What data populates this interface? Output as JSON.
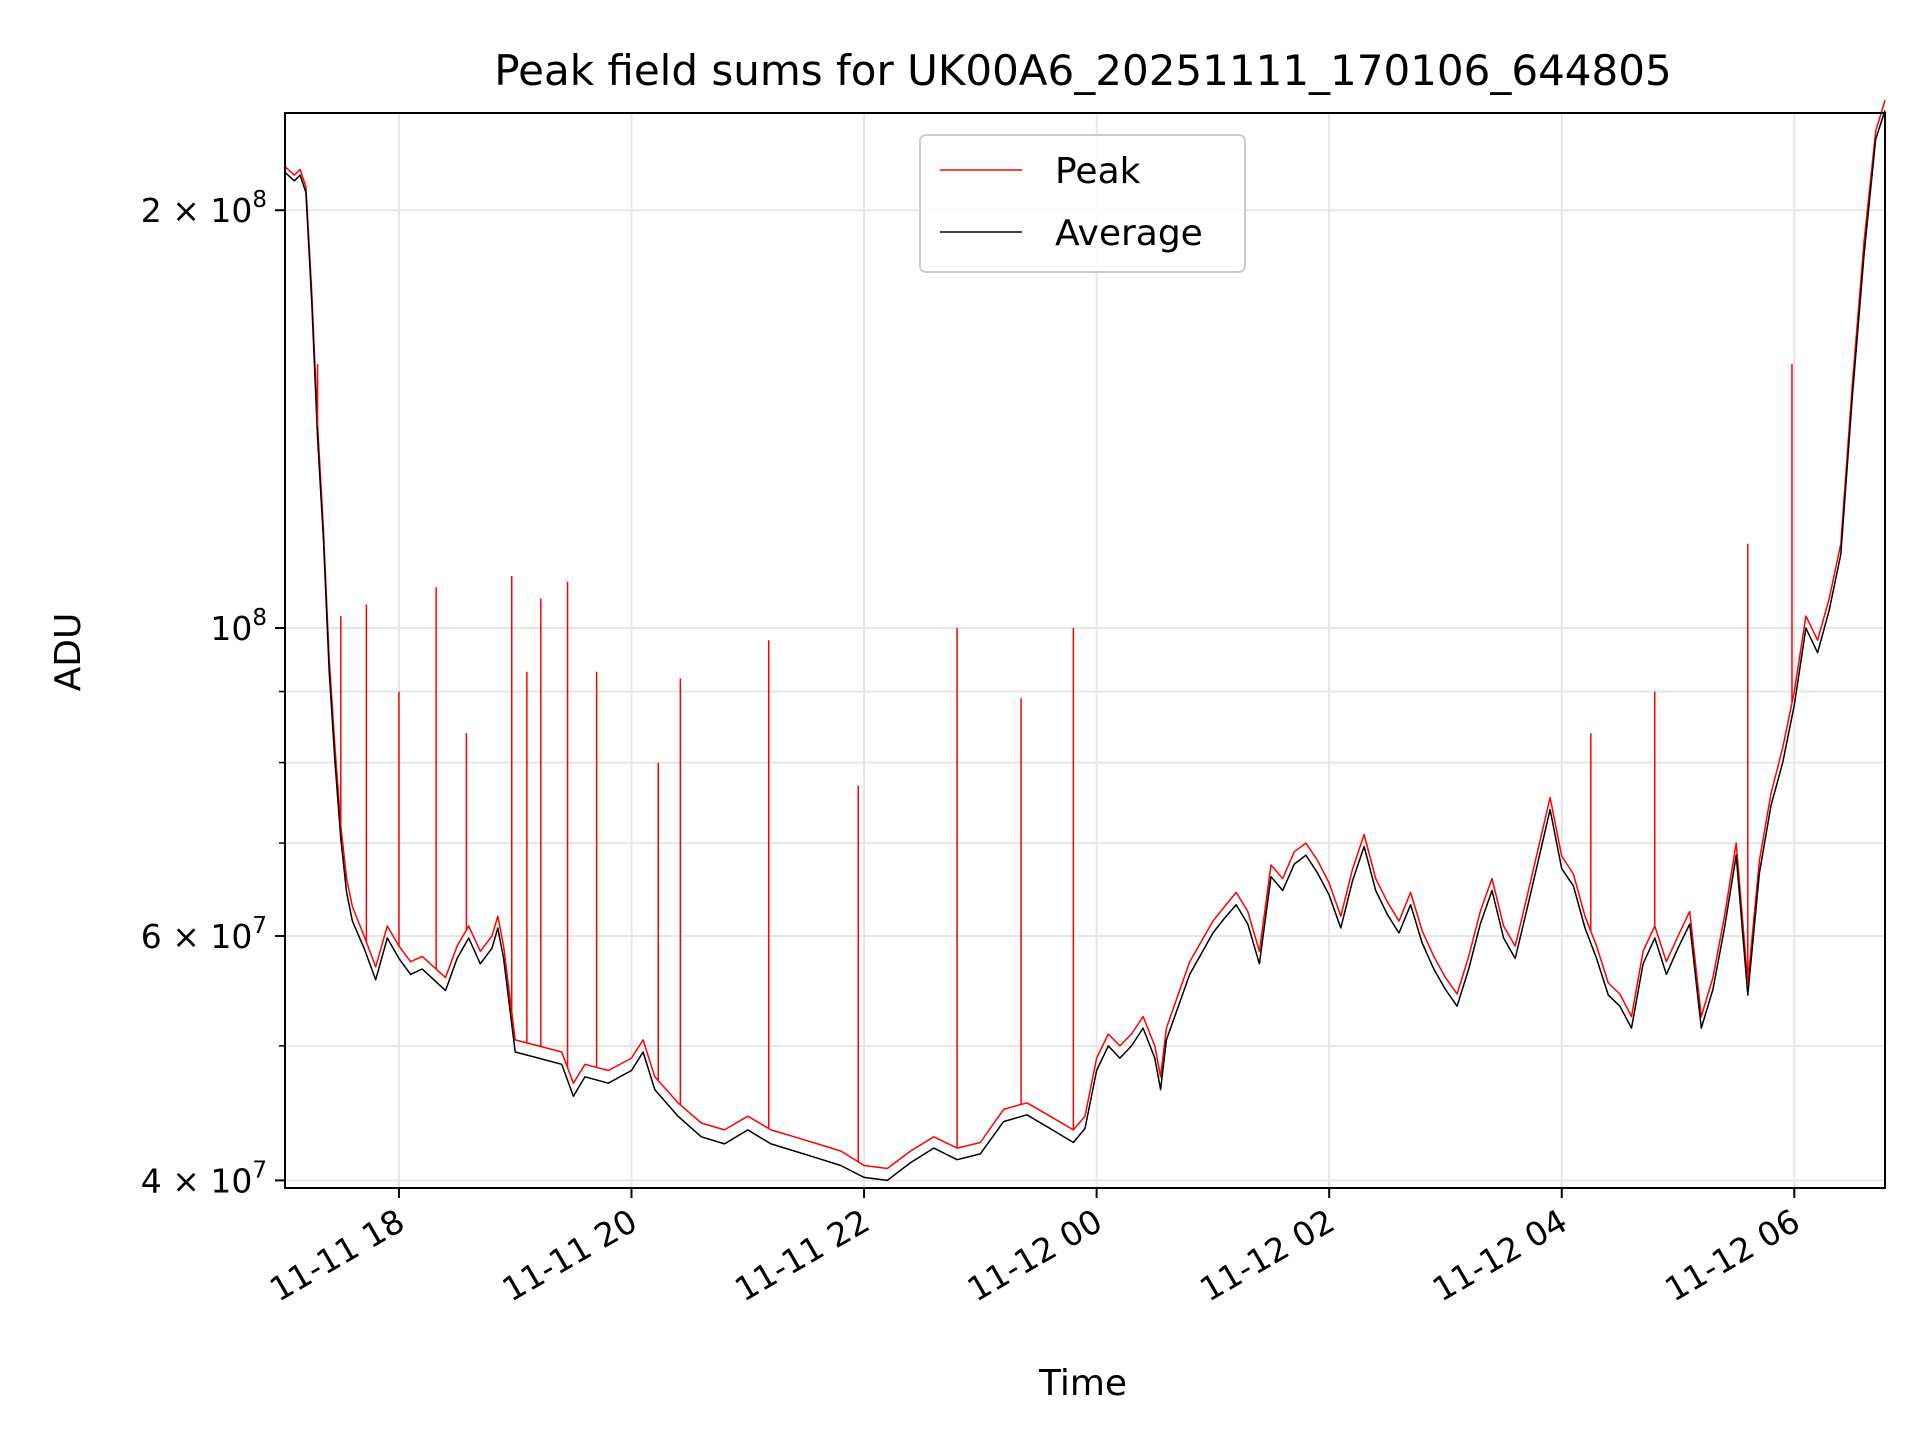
{
  "chart_data": {
    "type": "line",
    "title": "Peak field sums for UK00A6_20251111_170106_644805",
    "xlabel": "Time",
    "ylabel": "ADU",
    "yscale": "log",
    "grid": true,
    "legend_position": "top-center",
    "x_unit": "hours since 2025-11-11 00:00",
    "xlim": [
      17.02,
      30.78
    ],
    "ylim": [
      39500000,
      235000000
    ],
    "x_ticks": [
      {
        "value": 18,
        "label": "11-11 18"
      },
      {
        "value": 20,
        "label": "11-11 20"
      },
      {
        "value": 22,
        "label": "11-11 22"
      },
      {
        "value": 24,
        "label": "11-12 00"
      },
      {
        "value": 26,
        "label": "11-12 02"
      },
      {
        "value": 28,
        "label": "11-12 04"
      },
      {
        "value": 30,
        "label": "11-12 06"
      }
    ],
    "y_ticks": [
      {
        "value": 40000000,
        "mantissa": "4",
        "exponent": "7"
      },
      {
        "value": 60000000,
        "mantissa": "6",
        "exponent": "7"
      },
      {
        "value": 100000000,
        "mantissa": "",
        "exponent": "8"
      },
      {
        "value": 200000000,
        "mantissa": "2",
        "exponent": "8"
      }
    ],
    "y_minor_ticks": [
      50000000,
      70000000,
      80000000,
      90000000
    ],
    "series": [
      {
        "name": "Peak",
        "color": "#ff0000",
        "x": [
          17.02,
          17.1,
          17.15,
          17.2,
          17.25,
          17.3,
          17.35,
          17.4,
          17.45,
          17.5,
          17.55,
          17.6,
          17.7,
          17.8,
          17.9,
          18.0,
          18.1,
          18.2,
          18.3,
          18.4,
          18.5,
          18.6,
          18.7,
          18.8,
          18.85,
          18.9,
          19.0,
          19.2,
          19.4,
          19.5,
          19.6,
          19.8,
          20.0,
          20.1,
          20.2,
          20.4,
          20.6,
          20.8,
          21.0,
          21.2,
          21.4,
          21.6,
          21.8,
          22.0,
          22.2,
          22.4,
          22.6,
          22.8,
          23.0,
          23.2,
          23.4,
          23.6,
          23.8,
          23.9,
          24.0,
          24.1,
          24.2,
          24.3,
          24.4,
          24.5,
          24.55,
          24.6,
          24.8,
          25.0,
          25.1,
          25.2,
          25.3,
          25.4,
          25.5,
          25.6,
          25.7,
          25.8,
          25.9,
          26.0,
          26.1,
          26.2,
          26.3,
          26.4,
          26.5,
          26.6,
          26.7,
          26.8,
          26.9,
          27.0,
          27.1,
          27.2,
          27.3,
          27.4,
          27.5,
          27.6,
          27.7,
          27.8,
          27.9,
          28.0,
          28.1,
          28.2,
          28.3,
          28.4,
          28.5,
          28.6,
          28.7,
          28.8,
          28.9,
          29.0,
          29.1,
          29.2,
          29.3,
          29.4,
          29.5,
          29.6,
          29.7,
          29.8,
          29.9,
          30.0,
          30.1,
          30.2,
          30.3,
          30.4,
          30.5,
          30.6,
          30.7,
          30.78
        ],
        "values": [
          215000000,
          212000000,
          214000000,
          208000000,
          175000000,
          140000000,
          118000000,
          95000000,
          82000000,
          72000000,
          66000000,
          63000000,
          60000000,
          57000000,
          61000000,
          59000000,
          57500000,
          58000000,
          57000000,
          56000000,
          59000000,
          61000000,
          58500000,
          60000000,
          62000000,
          59000000,
          50500000,
          50000000,
          49500000,
          47000000,
          48500000,
          48000000,
          49000000,
          50500000,
          47500000,
          45500000,
          44000000,
          43500000,
          44500000,
          43500000,
          43000000,
          42500000,
          42000000,
          41000000,
          40800000,
          42000000,
          43000000,
          42200000,
          42600000,
          45000000,
          45500000,
          44500000,
          43500000,
          44500000,
          49000000,
          51000000,
          50000000,
          51000000,
          52500000,
          50000000,
          47500000,
          51500000,
          57500000,
          61500000,
          63000000,
          64500000,
          62500000,
          58500000,
          67500000,
          66000000,
          69000000,
          70000000,
          68000000,
          65500000,
          62000000,
          67000000,
          71000000,
          66000000,
          63500000,
          61500000,
          64500000,
          60500000,
          58000000,
          56000000,
          54500000,
          58000000,
          62500000,
          66000000,
          61000000,
          59000000,
          64000000,
          69500000,
          75500000,
          68500000,
          66500000,
          62000000,
          59000000,
          55500000,
          54500000,
          52500000,
          58500000,
          61000000,
          57500000,
          60000000,
          62500000,
          52500000,
          56000000,
          62000000,
          70000000,
          55500000,
          68000000,
          76000000,
          82000000,
          90000000,
          102000000,
          98000000,
          105000000,
          115000000,
          150000000,
          190000000,
          228000000,
          240000000
        ]
      },
      {
        "name": "Average",
        "color": "#000000",
        "x": [
          17.02,
          17.1,
          17.15,
          17.2,
          17.25,
          17.3,
          17.35,
          17.4,
          17.45,
          17.5,
          17.55,
          17.6,
          17.7,
          17.8,
          17.9,
          18.0,
          18.1,
          18.2,
          18.3,
          18.4,
          18.5,
          18.6,
          18.7,
          18.8,
          18.85,
          18.9,
          19.0,
          19.2,
          19.4,
          19.5,
          19.6,
          19.8,
          20.0,
          20.1,
          20.2,
          20.4,
          20.6,
          20.8,
          21.0,
          21.2,
          21.4,
          21.6,
          21.8,
          22.0,
          22.2,
          22.4,
          22.6,
          22.8,
          23.0,
          23.2,
          23.4,
          23.6,
          23.8,
          23.9,
          24.0,
          24.1,
          24.2,
          24.3,
          24.4,
          24.5,
          24.55,
          24.6,
          24.8,
          25.0,
          25.1,
          25.2,
          25.3,
          25.4,
          25.5,
          25.6,
          25.7,
          25.8,
          25.9,
          26.0,
          26.1,
          26.2,
          26.3,
          26.4,
          26.5,
          26.6,
          26.7,
          26.8,
          26.9,
          27.0,
          27.1,
          27.2,
          27.3,
          27.4,
          27.5,
          27.6,
          27.7,
          27.8,
          27.9,
          28.0,
          28.1,
          28.2,
          28.3,
          28.4,
          28.5,
          28.6,
          28.7,
          28.8,
          28.9,
          29.0,
          29.1,
          29.2,
          29.3,
          29.4,
          29.5,
          29.6,
          29.7,
          29.8,
          29.9,
          30.0,
          30.1,
          30.2,
          30.3,
          30.4,
          30.5,
          30.6,
          30.7,
          30.78
        ],
        "values": [
          213000000,
          210000000,
          212000000,
          206000000,
          172000000,
          137000000,
          116000000,
          93000000,
          80000000,
          70500000,
          64500000,
          61500000,
          58800000,
          55800000,
          59800000,
          57800000,
          56300000,
          56800000,
          55800000,
          54800000,
          57800000,
          59800000,
          57300000,
          58800000,
          60800000,
          57800000,
          49500000,
          49000000,
          48500000,
          46000000,
          47500000,
          47000000,
          48000000,
          49500000,
          46500000,
          44500000,
          43000000,
          42500000,
          43500000,
          42500000,
          42000000,
          41500000,
          41000000,
          40200000,
          40000000,
          41200000,
          42200000,
          41400000,
          41800000,
          44100000,
          44600000,
          43600000,
          42600000,
          43600000,
          48000000,
          50000000,
          49000000,
          50000000,
          51500000,
          49000000,
          46500000,
          50500000,
          56300000,
          60300000,
          61800000,
          63200000,
          61200000,
          57300000,
          66200000,
          64700000,
          67600000,
          68600000,
          66600000,
          64200000,
          60800000,
          65700000,
          69600000,
          64700000,
          62200000,
          60300000,
          63200000,
          59300000,
          56800000,
          54900000,
          53400000,
          56800000,
          61200000,
          64700000,
          59800000,
          57800000,
          62700000,
          68100000,
          74000000,
          67100000,
          65200000,
          60800000,
          57800000,
          54400000,
          53400000,
          51500000,
          57300000,
          59800000,
          56300000,
          58800000,
          61200000,
          51500000,
          54900000,
          60800000,
          68600000,
          54400000,
          66600000,
          74500000,
          80000000,
          88000000,
          100000000,
          96000000,
          103000000,
          113000000,
          147000000,
          186000000,
          225000000,
          236000000
        ]
      }
    ],
    "peak_spikes": [
      {
        "x": 17.3,
        "value": 155000000
      },
      {
        "x": 17.5,
        "value": 102000000
      },
      {
        "x": 17.72,
        "value": 104000000
      },
      {
        "x": 18.0,
        "value": 90000000
      },
      {
        "x": 18.32,
        "value": 107000000
      },
      {
        "x": 18.58,
        "value": 84000000
      },
      {
        "x": 18.97,
        "value": 109000000
      },
      {
        "x": 19.1,
        "value": 93000000
      },
      {
        "x": 19.22,
        "value": 105000000
      },
      {
        "x": 19.45,
        "value": 108000000
      },
      {
        "x": 19.7,
        "value": 93000000
      },
      {
        "x": 20.23,
        "value": 80000000
      },
      {
        "x": 20.42,
        "value": 92000000
      },
      {
        "x": 21.18,
        "value": 98000000
      },
      {
        "x": 21.95,
        "value": 77000000
      },
      {
        "x": 22.8,
        "value": 100000000
      },
      {
        "x": 23.35,
        "value": 89000000
      },
      {
        "x": 23.8,
        "value": 100000000
      },
      {
        "x": 28.25,
        "value": 84000000
      },
      {
        "x": 28.8,
        "value": 90000000
      },
      {
        "x": 29.6,
        "value": 115000000
      },
      {
        "x": 29.98,
        "value": 155000000
      }
    ]
  }
}
